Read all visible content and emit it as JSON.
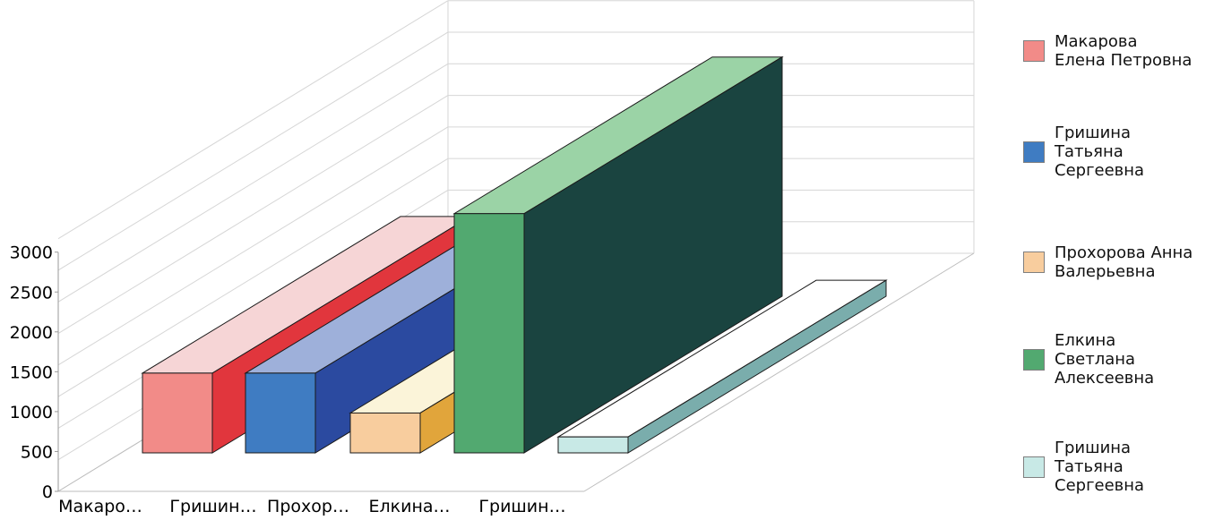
{
  "chart_data": {
    "type": "bar",
    "title": "",
    "xlabel": "",
    "ylabel": "",
    "categories": [
      "Макаро…",
      "Гришин…",
      "Прохор…",
      "Елкина…",
      "Гришин…"
    ],
    "values": [
      1000,
      1000,
      500,
      3000,
      200
    ],
    "ylim": [
      0,
      3000
    ],
    "yticks": [
      "0",
      "500",
      "1000",
      "1500",
      "2000",
      "2500",
      "3000"
    ],
    "grid": true,
    "legend_position": "right",
    "legend": [
      {
        "label": "Макарова Елена Петровна",
        "lines": [
          "Макарова",
          "Елена Петровна"
        ],
        "color": "#f28b88"
      },
      {
        "label": "Гришина Татьяна Сергеевна",
        "lines": [
          "Гришина",
          "Татьяна",
          "Сергеевна"
        ],
        "color": "#3f7cc2"
      },
      {
        "label": "Прохорова Анна Валерьевна",
        "lines": [
          "Прохорова Анна",
          "Валерьевна"
        ],
        "color": "#f8cd9e"
      },
      {
        "label": "Елкина Светлана Алексеевна",
        "lines": [
          "Елкина",
          "Светлана",
          "Алексеевна"
        ],
        "color": "#52a970"
      },
      {
        "label": "Гришина Татьяна Сергеевна",
        "lines": [
          "Гришина",
          "Татьяна",
          "Сергеевна"
        ],
        "color": "#c8e9e6"
      }
    ],
    "colors": {
      "front": [
        "#f28b88",
        "#3f7cc2",
        "#f8cd9e",
        "#52a970",
        "#c8e9e6"
      ],
      "top": [
        "#f6d5d6",
        "#9eb0da",
        "#fbf4d9",
        "#9bd3a6",
        "#ffffff"
      ],
      "side": [
        "#e1363d",
        "#2b4aa0",
        "#e1a53b",
        "#1a4440",
        "#7aadac"
      ]
    }
  }
}
